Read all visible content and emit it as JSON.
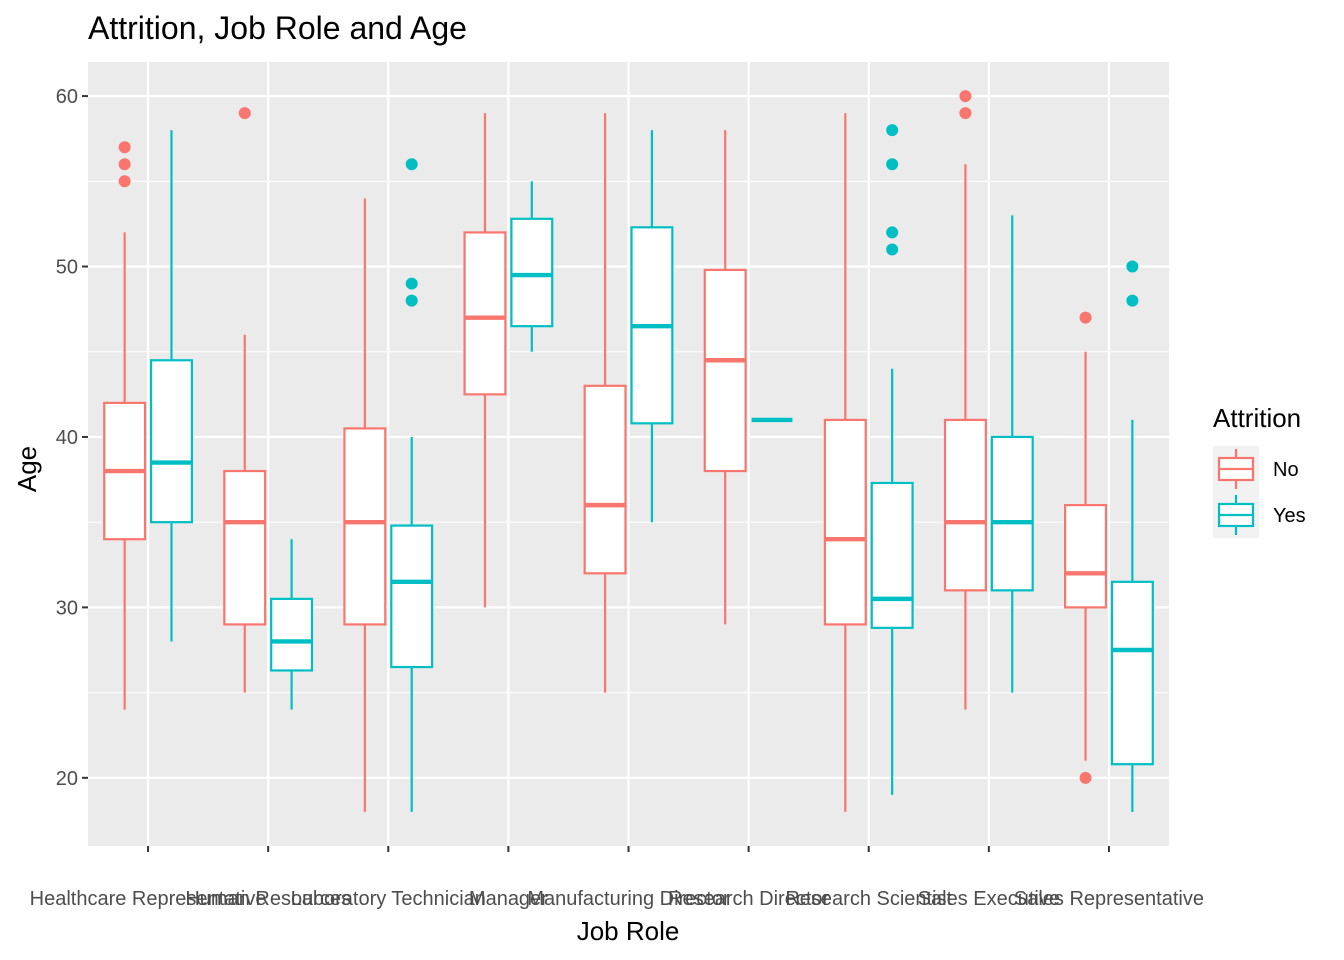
{
  "chart_data": {
    "type": "boxplot",
    "title": "Attrition, Job Role and Age",
    "xlabel": "Job Role",
    "ylabel": "Age",
    "ylim": [
      16,
      62
    ],
    "yticks": [
      20,
      30,
      40,
      50,
      60
    ],
    "categories": [
      "Healthcare Representative",
      "Human Resources",
      "Laboratory Technician",
      "Manager",
      "Manufacturing Director",
      "Research Director",
      "Research Scientist",
      "Sales Executive",
      "Sales Representative"
    ],
    "legend": {
      "title": "Attrition",
      "position": "right"
    },
    "grid": true,
    "series": [
      {
        "name": "No",
        "color": "#F8766D",
        "boxes": [
          {
            "lower_whisker": 24,
            "q1": 34,
            "median": 38,
            "q3": 42,
            "upper_whisker": 52,
            "outliers": [
              55,
              56,
              57
            ]
          },
          {
            "lower_whisker": 25,
            "q1": 29,
            "median": 35,
            "q3": 38,
            "upper_whisker": 46,
            "outliers": [
              59
            ]
          },
          {
            "lower_whisker": 18,
            "q1": 29,
            "median": 35,
            "q3": 40.5,
            "upper_whisker": 54,
            "outliers": []
          },
          {
            "lower_whisker": 30,
            "q1": 42.5,
            "median": 47,
            "q3": 52,
            "upper_whisker": 59,
            "outliers": []
          },
          {
            "lower_whisker": 25,
            "q1": 32,
            "median": 36,
            "q3": 43,
            "upper_whisker": 59,
            "outliers": []
          },
          {
            "lower_whisker": 29,
            "q1": 38,
            "median": 44.5,
            "q3": 49.8,
            "upper_whisker": 58,
            "outliers": []
          },
          {
            "lower_whisker": 18,
            "q1": 29,
            "median": 34,
            "q3": 41,
            "upper_whisker": 59,
            "outliers": []
          },
          {
            "lower_whisker": 24,
            "q1": 31,
            "median": 35,
            "q3": 41,
            "upper_whisker": 56,
            "outliers": [
              59,
              60
            ]
          },
          {
            "lower_whisker": 21,
            "q1": 30,
            "median": 32,
            "q3": 36,
            "upper_whisker": 45,
            "outliers": [
              20,
              47
            ]
          }
        ]
      },
      {
        "name": "Yes",
        "color": "#00BFC4",
        "boxes": [
          {
            "lower_whisker": 28,
            "q1": 35,
            "median": 38.5,
            "q3": 44.5,
            "upper_whisker": 58,
            "outliers": []
          },
          {
            "lower_whisker": 24,
            "q1": 26.3,
            "median": 28,
            "q3": 30.5,
            "upper_whisker": 34,
            "outliers": []
          },
          {
            "lower_whisker": 18,
            "q1": 26.5,
            "median": 31.5,
            "q3": 34.8,
            "upper_whisker": 40,
            "outliers": [
              48,
              49,
              56
            ]
          },
          {
            "lower_whisker": 45,
            "q1": 46.5,
            "median": 49.5,
            "q3": 52.8,
            "upper_whisker": 55,
            "outliers": []
          },
          {
            "lower_whisker": 35,
            "q1": 40.8,
            "median": 46.5,
            "q3": 52.3,
            "upper_whisker": 58,
            "outliers": []
          },
          {
            "lower_whisker": 41,
            "q1": 41,
            "median": 41,
            "q3": 41,
            "upper_whisker": 41,
            "outliers": []
          },
          {
            "lower_whisker": 19,
            "q1": 28.8,
            "median": 30.5,
            "q3": 37.3,
            "upper_whisker": 44,
            "outliers": [
              51,
              52,
              56,
              58
            ]
          },
          {
            "lower_whisker": 25,
            "q1": 31,
            "median": 35,
            "q3": 40,
            "upper_whisker": 53,
            "outliers": []
          },
          {
            "lower_whisker": 18,
            "q1": 20.8,
            "median": 27.5,
            "q3": 31.5,
            "upper_whisker": 41,
            "outliers": [
              48,
              50
            ]
          }
        ]
      }
    ]
  }
}
